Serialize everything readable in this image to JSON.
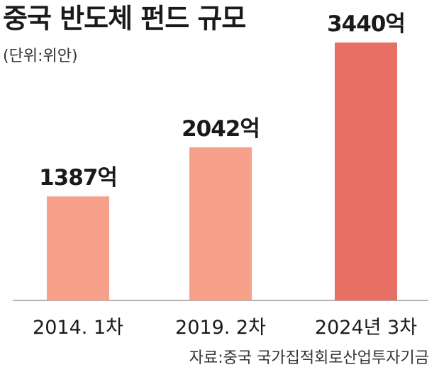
{
  "header": {
    "title": "중국 반도체 펀드 규모",
    "unit": "(단위:위안)"
  },
  "footer": {
    "source": "자료:중국 국가집적회로산업투자기금"
  },
  "colors": {
    "bar_light": "#f7a08a",
    "bar_highlight": "#e86f63",
    "axis": "#999999"
  },
  "chart_data": {
    "type": "bar",
    "title": "중국 반도체 펀드 규모",
    "unit": "(단위:위안)",
    "categories": [
      "2014. 1차",
      "2019. 2차",
      "2024년 3차"
    ],
    "values": [
      1387,
      2042,
      3440
    ],
    "data_labels": [
      "1387억",
      "2042억",
      "3440억"
    ],
    "highlight_index": 2,
    "ylim": [
      0,
      3440
    ],
    "grid": false,
    "legend": "none"
  }
}
